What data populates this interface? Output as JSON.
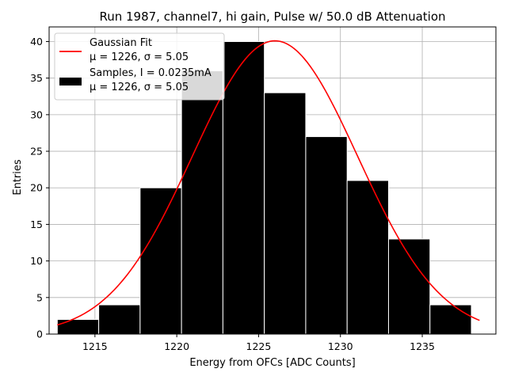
{
  "chart_data": {
    "type": "bar",
    "title": "Run 1987, channel7, hi gain, Pulse w/ 50.0 dB Attenuation",
    "xlabel": "Energy from OFCs [ADC Counts]",
    "ylabel": "Entries",
    "xlim": [
      1212.2,
      1239.5
    ],
    "ylim": [
      0,
      42
    ],
    "xticks": [
      1215,
      1220,
      1225,
      1230,
      1235
    ],
    "yticks": [
      0,
      5,
      10,
      15,
      20,
      25,
      30,
      35,
      40
    ],
    "grid": true,
    "legend_position": "top-left",
    "bins": [
      {
        "start": 1212.7,
        "end": 1215.23,
        "count": 2
      },
      {
        "start": 1215.23,
        "end": 1217.76,
        "count": 4
      },
      {
        "start": 1217.76,
        "end": 1220.29,
        "count": 20
      },
      {
        "start": 1220.29,
        "end": 1222.82,
        "count": 36
      },
      {
        "start": 1222.82,
        "end": 1225.35,
        "count": 40
      },
      {
        "start": 1225.35,
        "end": 1227.88,
        "count": 33
      },
      {
        "start": 1227.88,
        "end": 1230.41,
        "count": 27
      },
      {
        "start": 1230.41,
        "end": 1232.94,
        "count": 21
      },
      {
        "start": 1232.94,
        "end": 1235.47,
        "count": 13
      },
      {
        "start": 1235.47,
        "end": 1238.0,
        "count": 4
      }
    ],
    "fit": {
      "mu": 1226,
      "sigma": 5.05,
      "amplitude": 40.1,
      "x_range": [
        1212.7,
        1238.5
      ],
      "color": "#ff0000"
    },
    "bar_color": "#000000",
    "legend": [
      {
        "kind": "line",
        "color": "#ff0000",
        "line1": "Gaussian Fit",
        "line2": "μ = 1226, σ = 5.05"
      },
      {
        "kind": "patch",
        "color": "#000000",
        "line1": "Samples, I = 0.0235mA",
        "line2": "μ = 1226, σ = 5.05"
      }
    ]
  }
}
